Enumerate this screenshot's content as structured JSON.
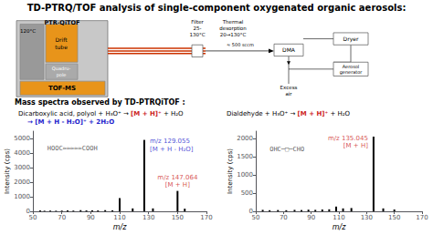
{
  "chart_data": [
    {
      "type": "bar",
      "title": "TD-PTRQ/TOF analysis of single-component oxygenated organic aerosols:",
      "subtitle": "Mass spectra observed by TD-PTRQiTOF :",
      "diagram_labels": [
        "PTR-QiTOF",
        "120°C",
        "Drift\ntube",
        "Quadru-\npole",
        "TOF-MS",
        "Filter\n25-\n130°C",
        "Thermal\ndesorption\n20→130°C",
        "≈ 500 sccm",
        "DMA",
        "Dryer",
        "Aerosol\ngenerator",
        "Excess\nair"
      ],
      "heading": [
        [
          {
            "text": "Dicarboxylic acid, polyol"
          },
          {
            "text": " + H₃O⁺ → "
          },
          {
            "text": "[M + H]⁺",
            "color": "#cc2222"
          },
          {
            "text": " + H₂O"
          }
        ],
        [
          {
            "text": "→ [M + H - H₂O]⁺ + 2H₂O",
            "color": "#2222cc"
          }
        ]
      ],
      "xlabel": "m/z",
      "ylabel": "Intensity (cps)",
      "xlim": [
        50,
        170
      ],
      "ylim": [
        0,
        5500
      ],
      "xticks": [
        50,
        70,
        90,
        110,
        130,
        150,
        170
      ],
      "yticks": [
        0,
        1000,
        2000,
        3000,
        4000,
        5000
      ],
      "grid": false,
      "color": "#000000",
      "x": [
        55,
        58,
        62,
        66,
        70,
        74,
        78,
        83,
        87,
        91,
        95,
        100,
        105,
        110,
        119,
        127,
        133,
        150,
        155
      ],
      "values": [
        60,
        40,
        50,
        40,
        50,
        60,
        50,
        80,
        60,
        70,
        60,
        80,
        70,
        900,
        200,
        4900,
        200,
        1400,
        180
      ],
      "annotations": [
        {
          "text": "m/z 129.055\n[M + H - H₂O]",
          "x": 127,
          "y": 4900,
          "color": "#2222cc"
        },
        {
          "text": "m/z 147.064\n[M + H]",
          "x": 150,
          "y": 1400,
          "color": "#cc2222"
        },
        {
          "text": "HOOC≈≈≈≈≈COOH",
          "x": 60,
          "y": 4300
        }
      ]
    },
    {
      "type": "bar",
      "heading": [
        [
          {
            "text": "Dialdehyde"
          },
          {
            "text": " + H₃O⁺ → "
          },
          {
            "text": "[M + H]⁺",
            "color": "#cc2222"
          },
          {
            "text": " + H₂O"
          }
        ]
      ],
      "xlabel": "m/z",
      "ylabel": "Intensity (cps)",
      "xlim": [
        50,
        170
      ],
      "ylim": [
        0,
        2200
      ],
      "xticks": [
        50,
        70,
        90,
        110,
        130,
        150,
        170
      ],
      "yticks": [
        0,
        500,
        1000,
        1500,
        2000
      ],
      "grid": false,
      "color": "#000000",
      "x": [
        55,
        60,
        66,
        72,
        78,
        83,
        88,
        93,
        98,
        103,
        108,
        113,
        119,
        135,
        142,
        150
      ],
      "values": [
        40,
        30,
        35,
        30,
        40,
        35,
        45,
        40,
        50,
        55,
        130,
        80,
        90,
        2050,
        80,
        50
      ],
      "annotations": [
        {
          "text": "m/z 135.045\n[M + H]",
          "x": 135,
          "y": 2050,
          "color": "#cc2222"
        },
        {
          "text": "OHC─□─CHO",
          "x": 60,
          "y": 1700
        }
      ]
    }
  ]
}
